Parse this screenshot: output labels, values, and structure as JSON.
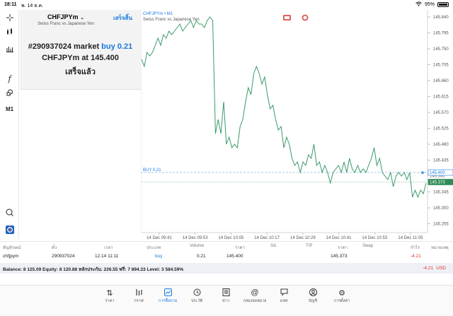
{
  "status": {
    "time": "18:11",
    "date": "พ. 14 ธ.ค.",
    "battery": "95%"
  },
  "tools": [
    "crosshair-icon",
    "bar-chart-icon",
    "indicator-icon",
    "function-icon",
    "objects-icon",
    "M1"
  ],
  "panel": {
    "symbol": "CHFJPYm",
    "description": "Swiss Franc vs Japanese Yen",
    "done_label": "เสร็จสิ้น",
    "order_prefix": "#290937024 market ",
    "order_side": "buy 0.21",
    "line2": "CHFJPYm at 145.400",
    "line3": "เสร็จแล้ว"
  },
  "chart": {
    "title": "CHFJPYm • M1",
    "subtitle": "Swiss Franc vs Japanese Yen",
    "buy_label": "BUY 0.21",
    "colors": {
      "line": "#3a9a68",
      "price_tag": "#2e8b57",
      "buy_line": "#1a7ae0"
    }
  },
  "chart_data": {
    "type": "line",
    "x_labels": [
      "14 Dec 09:41",
      "14 Dec 09:53",
      "14 Dec 10:05",
      "14 Dec 10:17",
      "14 Dec 10:29",
      "14 Dec 10:41",
      "14 Dec 10:53",
      "14 Dec 11:05"
    ],
    "y_ticks": [
      "145.840",
      "145.795",
      "145.750",
      "145.705",
      "145.660",
      "145.615",
      "145.570",
      "145.525",
      "145.480",
      "145.435",
      "145.390",
      "145.345",
      "145.300",
      "145.255"
    ],
    "ylim": [
      145.23,
      145.86
    ],
    "buy_price": 145.4,
    "buy_tag": "145.400",
    "current_price": 145.373,
    "current_tag": "145.373",
    "hidden_tag": "145.390",
    "series": [
      {
        "values": [
          145.72,
          145.7,
          145.74,
          145.73,
          145.74,
          145.76,
          145.78,
          145.76,
          145.79,
          145.78,
          145.8,
          145.79,
          145.8,
          145.81,
          145.82,
          145.8,
          145.81,
          145.82,
          145.83,
          145.81,
          145.83,
          145.82,
          145.82,
          145.81,
          145.83,
          145.84,
          145.83,
          145.51,
          145.55,
          145.51,
          145.6,
          145.48,
          145.5,
          145.47,
          145.48,
          145.47,
          145.53,
          145.55,
          145.6,
          145.64,
          145.62,
          145.68,
          145.7,
          145.68,
          145.65,
          145.67,
          145.62,
          145.58,
          145.59,
          145.55,
          145.52,
          145.53,
          145.47,
          145.5,
          145.48,
          145.44,
          145.42,
          145.43,
          145.4,
          145.43,
          145.42,
          145.45,
          145.44,
          145.48,
          145.42,
          145.43,
          145.4,
          145.42,
          145.4,
          145.37,
          145.4,
          145.41,
          145.42,
          145.4,
          145.43,
          145.4,
          145.44,
          145.41,
          145.4,
          145.42,
          145.4,
          145.41,
          145.4,
          145.42,
          145.44,
          145.47,
          145.42,
          145.44,
          145.4,
          145.39,
          145.38,
          145.4,
          145.36,
          145.39,
          145.4,
          145.39,
          145.4,
          145.38,
          145.4,
          145.33,
          145.35,
          145.33,
          145.35,
          145.34,
          145.37
        ]
      }
    ]
  },
  "table": {
    "headers": [
      "สัญลักษณ์",
      "ตั๋ว",
      "เวลา",
      "ประเภท",
      "Volume",
      "ราคา",
      "S/L",
      "T/P",
      "ราคา",
      "Swap",
      "กำไร",
      "หมายเหตุ"
    ],
    "row": {
      "symbol": "chfjpym",
      "ticket": "290937024",
      "time": "12.14 11:11",
      "type": "buy",
      "volume": "0.21",
      "price": "145.400",
      "sl": "",
      "tp": "",
      "current": "145.373",
      "swap": "",
      "profit": "-4.21",
      "comment": ""
    }
  },
  "balance": {
    "text": "Balance: 8 125.09 Equity: 8 120.88 หลักประกัน: 226.55 ฟรี: 7 894.33 Level: 3 584.59%",
    "profit": "-4.21",
    "currency": "USD"
  },
  "tabs": [
    {
      "label": "ราคา",
      "icon": "quotes-icon"
    },
    {
      "label": "กราฟ",
      "icon": "charts-icon"
    },
    {
      "label": "การซื้อขาย",
      "icon": "trade-icon",
      "active": true
    },
    {
      "label": "ประวัติ",
      "icon": "history-icon"
    },
    {
      "label": "ข่าว",
      "icon": "news-icon"
    },
    {
      "label": "กล่องจดหมาย",
      "icon": "mailbox-icon"
    },
    {
      "label": "แชท",
      "icon": "chat-icon"
    },
    {
      "label": "บัญชี",
      "icon": "account-icon"
    },
    {
      "label": "การตั้งค่า",
      "icon": "settings-icon"
    }
  ]
}
